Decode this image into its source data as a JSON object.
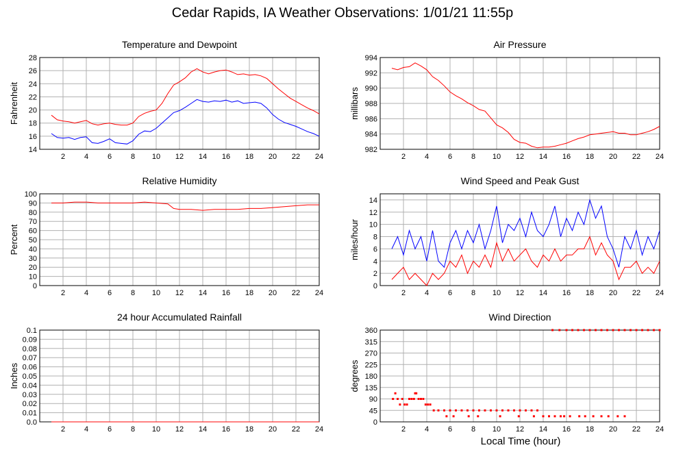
{
  "page": {
    "title": "Cedar Rapids, IA Weather Observations: 1/01/21 11:55p",
    "xaxis_title": "Local Time (hour)"
  },
  "colors": {
    "red": "#ff0000",
    "blue": "#0000ff",
    "grid": "#b0b0b0"
  },
  "chart_data": [
    {
      "id": "temp",
      "type": "line",
      "title": "Temperature and Dewpoint",
      "xlabel": "",
      "ylabel": "Fahrenheit",
      "xlim": [
        0,
        24
      ],
      "ylim": [
        14,
        28
      ],
      "xticks": [
        2,
        4,
        6,
        8,
        10,
        12,
        14,
        16,
        18,
        20,
        22,
        24
      ],
      "yticks": [
        14,
        16,
        18,
        20,
        22,
        24,
        26,
        28
      ],
      "grid": true,
      "series": [
        {
          "color": "#ff0000",
          "x": [
            1,
            1.5,
            2,
            2.5,
            3,
            3.5,
            4,
            4.5,
            5,
            5.5,
            6,
            6.5,
            7,
            7.5,
            8,
            8.5,
            9,
            9.5,
            10,
            10.5,
            11,
            11.5,
            12,
            12.5,
            13,
            13.5,
            14,
            14.5,
            15,
            15.5,
            16,
            16.5,
            17,
            17.5,
            18,
            18.5,
            19,
            19.5,
            20,
            20.5,
            21,
            21.5,
            22,
            22.5,
            23,
            23.5,
            24
          ],
          "values": [
            19.2,
            18.5,
            18.3,
            18.2,
            18.0,
            18.2,
            18.4,
            17.9,
            17.7,
            17.9,
            18.0,
            17.8,
            17.7,
            17.7,
            18.0,
            19.0,
            19.5,
            19.8,
            20.0,
            21.0,
            22.5,
            23.8,
            24.3,
            24.9,
            25.8,
            26.3,
            25.8,
            25.5,
            25.8,
            26.0,
            26.1,
            25.8,
            25.4,
            25.5,
            25.3,
            25.4,
            25.2,
            24.8,
            24.0,
            23.2,
            22.5,
            21.8,
            21.3,
            20.8,
            20.3,
            19.9,
            19.4
          ]
        },
        {
          "color": "#0000ff",
          "x": [
            1,
            1.5,
            2,
            2.5,
            3,
            3.5,
            4,
            4.5,
            5,
            5.5,
            6,
            6.5,
            7,
            7.5,
            8,
            8.5,
            9,
            9.5,
            10,
            10.5,
            11,
            11.5,
            12,
            12.5,
            13,
            13.5,
            14,
            14.5,
            15,
            15.5,
            16,
            16.5,
            17,
            17.5,
            18,
            18.5,
            19,
            19.5,
            20,
            20.5,
            21,
            21.5,
            22,
            22.5,
            23,
            23.5,
            24
          ],
          "values": [
            16.4,
            15.8,
            15.7,
            15.8,
            15.5,
            15.8,
            15.9,
            15.0,
            14.9,
            15.2,
            15.6,
            15.0,
            14.9,
            14.8,
            15.3,
            16.3,
            16.8,
            16.7,
            17.2,
            18.0,
            18.8,
            19.6,
            19.9,
            20.4,
            21.0,
            21.6,
            21.3,
            21.2,
            21.4,
            21.3,
            21.5,
            21.2,
            21.4,
            21.0,
            21.1,
            21.2,
            21.0,
            20.3,
            19.3,
            18.6,
            18.1,
            17.8,
            17.5,
            17.1,
            16.7,
            16.4,
            16.0
          ]
        }
      ]
    },
    {
      "id": "pressure",
      "type": "line",
      "title": "Air Pressure",
      "xlabel": "",
      "ylabel": "millibars",
      "xlim": [
        0,
        24
      ],
      "ylim": [
        982,
        994
      ],
      "xticks": [
        2,
        4,
        6,
        8,
        10,
        12,
        14,
        16,
        18,
        20,
        22,
        24
      ],
      "yticks": [
        982,
        984,
        986,
        988,
        990,
        992,
        994
      ],
      "grid": true,
      "series": [
        {
          "color": "#ff0000",
          "x": [
            1,
            1.5,
            2,
            2.5,
            3,
            3.5,
            4,
            4.5,
            5,
            5.5,
            6,
            6.5,
            7,
            7.5,
            8,
            8.5,
            9,
            9.5,
            10,
            10.5,
            11,
            11.5,
            12,
            12.5,
            13,
            13.5,
            14,
            14.5,
            15,
            15.5,
            16,
            16.5,
            17,
            17.5,
            18,
            18.5,
            19,
            19.5,
            20,
            20.5,
            21,
            21.5,
            22,
            22.5,
            23,
            23.5,
            24
          ],
          "values": [
            992.6,
            992.4,
            992.7,
            992.8,
            993.3,
            992.9,
            992.4,
            991.5,
            991.0,
            990.3,
            989.5,
            989.0,
            988.6,
            988.1,
            987.7,
            987.2,
            987.0,
            986.1,
            985.2,
            984.8,
            984.2,
            983.3,
            982.9,
            982.8,
            982.4,
            982.2,
            982.3,
            982.3,
            982.4,
            982.6,
            982.8,
            983.1,
            983.4,
            983.6,
            983.9,
            984.0,
            984.1,
            984.2,
            984.3,
            984.1,
            984.1,
            983.9,
            983.9,
            984.1,
            984.3,
            984.6,
            985.0
          ]
        }
      ]
    },
    {
      "id": "humidity",
      "type": "line",
      "title": "Relative Humidity",
      "xlabel": "",
      "ylabel": "Percent",
      "xlim": [
        0,
        24
      ],
      "ylim": [
        0,
        100
      ],
      "xticks": [
        2,
        4,
        6,
        8,
        10,
        12,
        14,
        16,
        18,
        20,
        22,
        24
      ],
      "yticks": [
        0,
        10,
        20,
        30,
        40,
        50,
        60,
        70,
        80,
        90,
        100
      ],
      "grid": true,
      "series": [
        {
          "color": "#ff0000",
          "x": [
            1,
            2,
            3,
            4,
            5,
            6,
            7,
            8,
            9,
            10,
            11,
            11.5,
            12,
            13,
            14,
            15,
            16,
            17,
            18,
            19,
            20,
            21,
            22,
            23,
            24
          ],
          "values": [
            90,
            90,
            91,
            91,
            90,
            90,
            90,
            90,
            91,
            90,
            89,
            84,
            83,
            83,
            82,
            83,
            83,
            83,
            84,
            84,
            85,
            86,
            87,
            88,
            88
          ]
        }
      ]
    },
    {
      "id": "wind",
      "type": "line",
      "title": "Wind Speed and Peak Gust",
      "xlabel": "",
      "ylabel": "miles/hour",
      "xlim": [
        0,
        24
      ],
      "ylim": [
        0,
        15
      ],
      "xticks": [
        2,
        4,
        6,
        8,
        10,
        12,
        14,
        16,
        18,
        20,
        22,
        24
      ],
      "yticks": [
        0,
        2,
        4,
        6,
        8,
        10,
        12,
        14
      ],
      "grid": true,
      "series": [
        {
          "color": "#0000ff",
          "x": [
            1,
            1.5,
            2,
            2.5,
            3,
            3.5,
            4,
            4.5,
            5,
            5.5,
            6,
            6.5,
            7,
            7.5,
            8,
            8.5,
            9,
            9.5,
            10,
            10.5,
            11,
            11.5,
            12,
            12.5,
            13,
            13.5,
            14,
            14.5,
            15,
            15.5,
            16,
            16.5,
            17,
            17.5,
            18,
            18.5,
            19,
            19.5,
            20,
            20.5,
            21,
            21.5,
            22,
            22.5,
            23,
            23.5,
            24
          ],
          "values": [
            6,
            8,
            5,
            9,
            6,
            8,
            4,
            9,
            4,
            3,
            7,
            9,
            6,
            9,
            7,
            10,
            6,
            9,
            13,
            7,
            10,
            9,
            11,
            8,
            12,
            9,
            8,
            10,
            13,
            8,
            11,
            9,
            12,
            10,
            14,
            11,
            13,
            8,
            6,
            3,
            8,
            6,
            9,
            5,
            8,
            6,
            9
          ]
        },
        {
          "color": "#ff0000",
          "x": [
            1,
            1.5,
            2,
            2.5,
            3,
            3.5,
            4,
            4.5,
            5,
            5.5,
            6,
            6.5,
            7,
            7.5,
            8,
            8.5,
            9,
            9.5,
            10,
            10.5,
            11,
            11.5,
            12,
            12.5,
            13,
            13.5,
            14,
            14.5,
            15,
            15.5,
            16,
            16.5,
            17,
            17.5,
            18,
            18.5,
            19,
            19.5,
            20,
            20.5,
            21,
            21.5,
            22,
            22.5,
            23,
            23.5,
            24
          ],
          "values": [
            1,
            2,
            3,
            1,
            2,
            1,
            0,
            2,
            1,
            2,
            4,
            3,
            5,
            2,
            4,
            3,
            5,
            3,
            7,
            4,
            6,
            4,
            5,
            6,
            4,
            3,
            5,
            4,
            6,
            4,
            5,
            5,
            6,
            6,
            8,
            5,
            7,
            5,
            4,
            1,
            3,
            3,
            4,
            2,
            3,
            2,
            4
          ]
        }
      ]
    },
    {
      "id": "rain",
      "type": "line",
      "title": "24 hour Accumulated Rainfall",
      "xlabel": "",
      "ylabel": "Inches",
      "xlim": [
        0,
        24
      ],
      "ylim": [
        0,
        0.1
      ],
      "xticks": [
        2,
        4,
        6,
        8,
        10,
        12,
        14,
        16,
        18,
        20,
        22,
        24
      ],
      "yticks": [
        0.0,
        0.01,
        0.02,
        0.03,
        0.04,
        0.05,
        0.06,
        0.07,
        0.08,
        0.09,
        0.1
      ],
      "ytick_labels": [
        "0.0",
        "0.01",
        "0.02",
        "0.03",
        "0.04",
        "0.05",
        "0.06",
        "0.07",
        "0.08",
        "0.09",
        "0.1"
      ],
      "grid": true,
      "series": [
        {
          "color": "#ff0000",
          "x": [
            1,
            24
          ],
          "values": [
            0,
            0
          ]
        }
      ]
    },
    {
      "id": "winddir",
      "type": "scatter",
      "title": "Wind Direction",
      "xlabel": "Local Time (hour)",
      "ylabel": "degrees",
      "xlim": [
        0,
        24
      ],
      "ylim": [
        0,
        360
      ],
      "xticks": [
        2,
        4,
        6,
        8,
        10,
        12,
        14,
        16,
        18,
        20,
        22,
        24
      ],
      "yticks": [
        0,
        45,
        90,
        135,
        180,
        225,
        270,
        315,
        360
      ],
      "grid": true,
      "series": [
        {
          "color": "#ff0000",
          "x": [
            1.1,
            1.3,
            1.5,
            1.7,
            1.9,
            2.1,
            2.3,
            2.5,
            2.7,
            2.9,
            3.0,
            3.1,
            3.3,
            3.5,
            3.7,
            3.9,
            4.1,
            4.3,
            4.6,
            5.0,
            5.5,
            6.0,
            6.5,
            7.0,
            7.5,
            8.0,
            8.5,
            9.0,
            9.5,
            10.0,
            10.5,
            11.0,
            11.5,
            12.0,
            12.5,
            13.0,
            13.5,
            14.0,
            14.5,
            15.0,
            15.5,
            5.7,
            6.3,
            7.6,
            8.4,
            10.3,
            11.9,
            13.2,
            15.8,
            16.3,
            17.1,
            17.6,
            18.3,
            19.0,
            19.6,
            20.4,
            21.0,
            14.8,
            15.4,
            16.0,
            16.5,
            17.0,
            17.5,
            18.0,
            18.5,
            19.0,
            19.5,
            20.0,
            20.5,
            21.0,
            21.5,
            22.0,
            22.5,
            23.0,
            23.5,
            24.0
          ],
          "values": [
            90,
            112,
            90,
            68,
            90,
            68,
            68,
            90,
            90,
            90,
            112,
            112,
            90,
            90,
            90,
            68,
            68,
            68,
            45,
            45,
            45,
            45,
            45,
            45,
            45,
            45,
            45,
            45,
            45,
            45,
            45,
            45,
            45,
            45,
            45,
            45,
            45,
            22,
            22,
            22,
            22,
            22,
            22,
            22,
            22,
            22,
            22,
            22,
            22,
            22,
            22,
            22,
            22,
            22,
            22,
            22,
            22,
            360,
            360,
            360,
            360,
            360,
            360,
            360,
            360,
            360,
            360,
            360,
            360,
            360,
            360,
            360,
            360,
            360,
            360,
            360
          ]
        }
      ]
    }
  ]
}
